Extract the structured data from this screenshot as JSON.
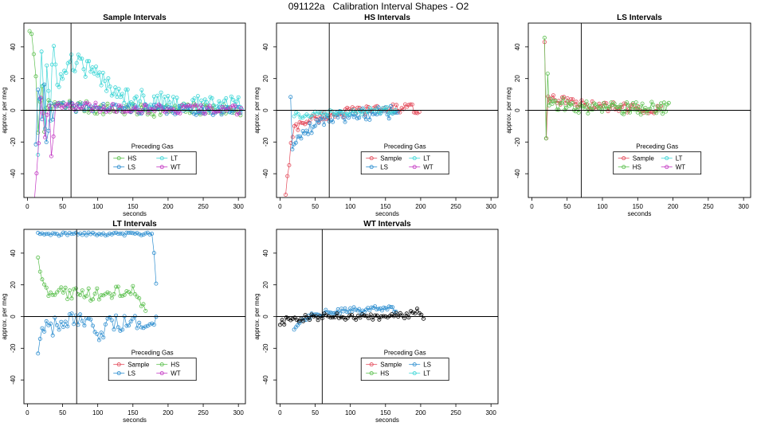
{
  "figure": {
    "title": "091122a   Calibration Interval Shapes - O2"
  },
  "palette": {
    "Sample": "#e34a5a",
    "HS": "#5cc04f",
    "LS": "#2f8fd0",
    "LT": "#3dd6d6",
    "WT": "#c43ac4",
    "self": "#000000"
  },
  "chart_data": [
    {
      "type": "line",
      "title": "Sample Intervals",
      "xlabel": "seconds",
      "ylabel": "approx. per meg",
      "xlim": [
        -5,
        310
      ],
      "ylim": [
        -55,
        55
      ],
      "xticks": [
        0,
        50,
        100,
        150,
        200,
        250,
        300
      ],
      "yticks": [
        -40,
        -20,
        0,
        20,
        40
      ],
      "vline": 62,
      "legend": {
        "title": "Preceding Gas",
        "entries": [
          "HS",
          "LT",
          "LS",
          "WT"
        ],
        "placement": "bottom-center"
      },
      "series": [
        {
          "name": "HS",
          "profile": [
            [
              3,
              52
            ],
            [
              8,
              40
            ],
            [
              12,
              18
            ],
            [
              16,
              -20
            ],
            [
              20,
              25
            ],
            [
              24,
              -10
            ],
            [
              28,
              10
            ],
            [
              32,
              -5
            ],
            [
              38,
              6
            ],
            [
              45,
              2
            ],
            [
              60,
              3
            ],
            [
              100,
              1
            ],
            [
              150,
              0
            ],
            [
              200,
              0
            ],
            [
              250,
              1
            ],
            [
              305,
              0
            ]
          ],
          "x_end": 305,
          "step": 3,
          "noise": 4
        },
        {
          "name": "LT",
          "profile": [
            [
              15,
              -25
            ],
            [
              20,
              40
            ],
            [
              25,
              -10
            ],
            [
              28,
              35
            ],
            [
              32,
              -15
            ],
            [
              36,
              40
            ],
            [
              42,
              20
            ],
            [
              50,
              20
            ],
            [
              60,
              30
            ],
            [
              70,
              30
            ],
            [
              90,
              25
            ],
            [
              110,
              18
            ],
            [
              130,
              12
            ],
            [
              150,
              8
            ],
            [
              180,
              6
            ],
            [
              220,
              4
            ],
            [
              270,
              3
            ],
            [
              305,
              4
            ]
          ],
          "x_end": 305,
          "step": 2.5,
          "noise": 6
        },
        {
          "name": "LS",
          "profile": [
            [
              12,
              -20
            ],
            [
              16,
              20
            ],
            [
              20,
              -10
            ],
            [
              24,
              15
            ],
            [
              28,
              -30
            ],
            [
              32,
              10
            ],
            [
              36,
              -5
            ],
            [
              40,
              3
            ],
            [
              60,
              2
            ],
            [
              100,
              2
            ],
            [
              200,
              0
            ],
            [
              305,
              0
            ]
          ],
          "x_end": 305,
          "step": 3,
          "noise": 3
        },
        {
          "name": "WT",
          "profile": [
            [
              10,
              -55
            ],
            [
              15,
              -30
            ],
            [
              20,
              15
            ],
            [
              25,
              -20
            ],
            [
              30,
              10
            ],
            [
              35,
              -35
            ],
            [
              40,
              5
            ],
            [
              60,
              3
            ],
            [
              100,
              2
            ],
            [
              200,
              1
            ],
            [
              305,
              0
            ]
          ],
          "x_end": 305,
          "step": 3,
          "noise": 3
        }
      ]
    },
    {
      "type": "line",
      "title": "HS Intervals",
      "xlabel": "seconds",
      "ylabel": "approx. per meg",
      "xlim": [
        -5,
        310
      ],
      "ylim": [
        -55,
        55
      ],
      "xticks": [
        0,
        50,
        100,
        150,
        200,
        250,
        300
      ],
      "yticks": [
        -40,
        -20,
        0,
        20,
        40
      ],
      "vline": 70,
      "legend": {
        "title": "Preceding Gas",
        "entries": [
          "Sample",
          "LT",
          "LS",
          "WT"
        ],
        "placement": "bottom-center"
      },
      "series": [
        {
          "name": "Sample",
          "profile": [
            [
              8,
              -52
            ],
            [
              12,
              -38
            ],
            [
              16,
              -20
            ],
            [
              20,
              -12
            ],
            [
              30,
              -8
            ],
            [
              50,
              -5
            ],
            [
              80,
              -2
            ],
            [
              120,
              0
            ],
            [
              160,
              1
            ],
            [
              198,
              1
            ]
          ],
          "x_end": 198,
          "step": 2.5,
          "noise": 3
        },
        {
          "name": "LS",
          "profile": [
            [
              15,
              10
            ],
            [
              18,
              -30
            ],
            [
              22,
              -20
            ],
            [
              30,
              -15
            ],
            [
              40,
              -12
            ],
            [
              60,
              -6
            ],
            [
              90,
              -4
            ],
            [
              130,
              -2
            ],
            [
              168,
              -1
            ]
          ],
          "x_end": 168,
          "step": 2.5,
          "noise": 4
        },
        {
          "name": "LT",
          "profile": [
            [
              20,
              -3
            ],
            [
              60,
              -2
            ],
            [
              100,
              -1
            ],
            [
              140,
              0
            ],
            [
              165,
              0
            ]
          ],
          "x_end": 165,
          "step": 3,
          "noise": 2
        },
        {
          "name": "WT",
          "profile": [],
          "x_end": 0,
          "step": 3,
          "noise": 0
        }
      ]
    },
    {
      "type": "line",
      "title": "LS Intervals",
      "xlabel": "seconds",
      "ylabel": "approx. per meg",
      "xlim": [
        -5,
        310
      ],
      "ylim": [
        -55,
        55
      ],
      "xticks": [
        0,
        50,
        100,
        150,
        200,
        250,
        300
      ],
      "yticks": [
        -40,
        -20,
        0,
        20,
        40
      ],
      "vline": 70,
      "legend": {
        "title": "Preceding Gas",
        "entries": [
          "Sample",
          "LT",
          "HS",
          "WT"
        ],
        "placement": "bottom-center"
      },
      "series": [
        {
          "name": "Sample",
          "profile": [
            [
              18,
              44
            ],
            [
              20,
              -30
            ],
            [
              22,
              15
            ],
            [
              25,
              5
            ],
            [
              30,
              8
            ],
            [
              50,
              5
            ],
            [
              80,
              3
            ],
            [
              120,
              2
            ],
            [
              160,
              1
            ],
            [
              185,
              1
            ]
          ],
          "x_end": 185,
          "step": 2.5,
          "noise": 3
        },
        {
          "name": "HS",
          "profile": [
            [
              18,
              47
            ],
            [
              20,
              -20
            ],
            [
              22,
              25
            ],
            [
              25,
              2
            ],
            [
              30,
              5
            ],
            [
              60,
              2
            ],
            [
              100,
              1
            ],
            [
              150,
              1
            ],
            [
              195,
              2
            ]
          ],
          "x_end": 195,
          "step": 2.2,
          "noise": 4
        },
        {
          "name": "LT",
          "profile": [],
          "x_end": 0,
          "step": 3,
          "noise": 0
        },
        {
          "name": "WT",
          "profile": [],
          "x_end": 0,
          "step": 3,
          "noise": 0
        }
      ]
    },
    {
      "type": "line",
      "title": "LT Intervals",
      "xlabel": "seconds",
      "ylabel": "approx. per meg",
      "xlim": [
        -5,
        310
      ],
      "ylim": [
        -55,
        55
      ],
      "xticks": [
        0,
        50,
        100,
        150,
        200,
        250,
        300
      ],
      "yticks": [
        -40,
        -20,
        0,
        20,
        40
      ],
      "vline": 70,
      "legend": {
        "title": "Preceding Gas",
        "entries": [
          "Sample",
          "HS",
          "LS",
          "WT"
        ],
        "placement": "bottom-center"
      },
      "series": [
        {
          "name": "LS",
          "profile": [
            [
              15,
              -22
            ],
            [
              20,
              -10
            ],
            [
              30,
              -8
            ],
            [
              50,
              -5
            ],
            [
              70,
              -3
            ],
            [
              100,
              -10
            ],
            [
              120,
              -5
            ],
            [
              150,
              -5
            ],
            [
              175,
              0
            ],
            [
              185,
              0
            ]
          ],
          "x_end": 185,
          "step": 3,
          "noise": 6
        },
        {
          "name": "LS",
          "profile": [
            [
              15,
              53
            ],
            [
              40,
              52
            ],
            [
              80,
              52
            ],
            [
              120,
              52
            ],
            [
              160,
              52
            ],
            [
              178,
              52
            ],
            [
              182,
              30
            ],
            [
              185,
              0
            ]
          ],
          "x_end": 185,
          "step": 3,
          "noise": 1
        },
        {
          "name": "HS",
          "profile": [
            [
              15,
              38
            ],
            [
              20,
              20
            ],
            [
              30,
              16
            ],
            [
              60,
              14
            ],
            [
              90,
              14
            ],
            [
              120,
              15
            ],
            [
              150,
              17
            ],
            [
              168,
              5
            ]
          ],
          "x_end": 168,
          "step": 3,
          "noise": 4
        },
        {
          "name": "Sample",
          "profile": [],
          "x_end": 0,
          "step": 3,
          "noise": 0
        },
        {
          "name": "WT",
          "profile": [],
          "x_end": 0,
          "step": 3,
          "noise": 0
        }
      ]
    },
    {
      "type": "line",
      "title": "WT Intervals",
      "xlabel": "seconds",
      "ylabel": "approx. per meg",
      "xlim": [
        -5,
        310
      ],
      "ylim": [
        -55,
        55
      ],
      "xticks": [
        0,
        50,
        100,
        150,
        200,
        250,
        300
      ],
      "yticks": [
        -40,
        -20,
        0,
        20,
        40
      ],
      "vline": 60,
      "legend": {
        "title": "Preceding Gas",
        "entries": [
          "Sample",
          "LS",
          "HS",
          "LT"
        ],
        "placement": "bottom-center"
      },
      "series": [
        {
          "name": "LS",
          "profile": [
            [
              20,
              -8
            ],
            [
              30,
              -2
            ],
            [
              50,
              2
            ],
            [
              80,
              3
            ],
            [
              110,
              4
            ],
            [
              140,
              5
            ],
            [
              165,
              4
            ]
          ],
          "x_end": 165,
          "step": 2.5,
          "noise": 2
        },
        {
          "name": "self",
          "profile": [
            [
              0,
              -5
            ],
            [
              10,
              -2
            ],
            [
              30,
              -1
            ],
            [
              60,
              0
            ],
            [
              100,
              0
            ],
            [
              150,
              0
            ],
            [
              180,
              1
            ],
            [
              195,
              3
            ],
            [
              205,
              0
            ]
          ],
          "x_end": 205,
          "step": 3,
          "noise": 2
        }
      ]
    }
  ]
}
